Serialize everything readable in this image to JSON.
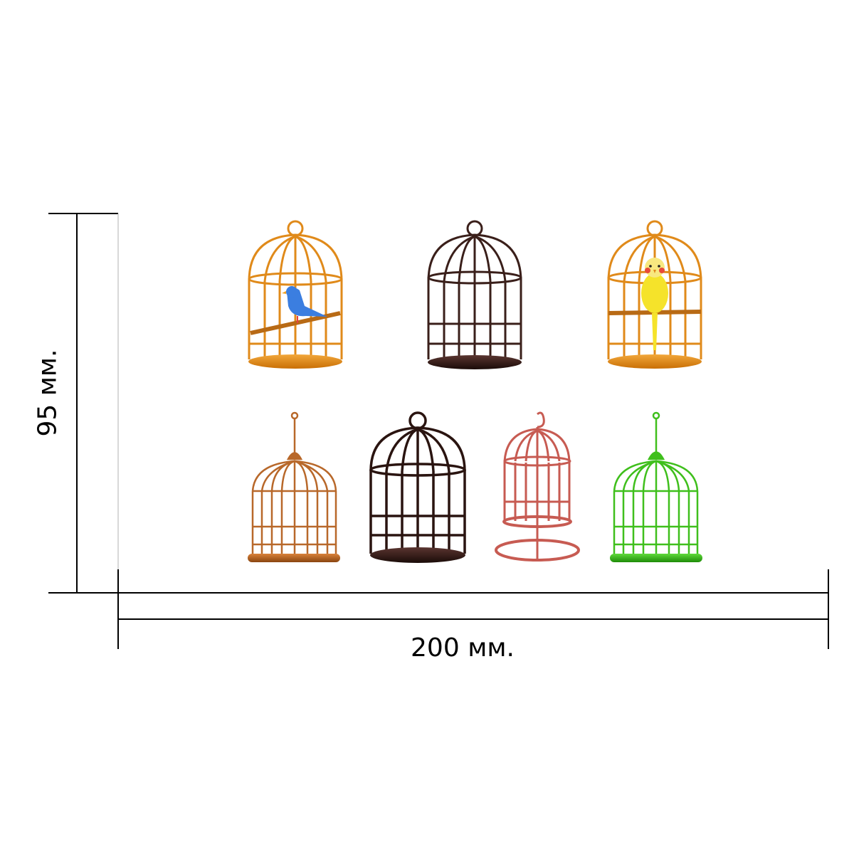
{
  "dimensions": {
    "width_label": "200 мм.",
    "height_label": "95 мм."
  },
  "colors": {
    "line": "#000000",
    "orange": "#e08a1a",
    "orange_dark": "#c06d08",
    "dark": "#3a1f1a",
    "darker": "#2a1410",
    "copper": "#b8682a",
    "red": "#c75b52",
    "green": "#3fbf1c",
    "green_base": "#2aa012",
    "bird_blue": "#3b7ee0",
    "bird_yellow": "#f5e32a"
  },
  "cages": [
    {
      "id": "cage-orange-blue-bird",
      "style": "dome",
      "color": "orange",
      "bird": "blue"
    },
    {
      "id": "cage-dark-empty",
      "style": "dome",
      "color": "dark",
      "bird": ""
    },
    {
      "id": "cage-orange-yellow-bird",
      "style": "dome",
      "color": "orange",
      "bird": "yellow"
    },
    {
      "id": "cage-copper-hanging",
      "style": "hanging",
      "color": "copper",
      "bird": ""
    },
    {
      "id": "cage-black-dome",
      "style": "dome",
      "color": "darker",
      "bird": ""
    },
    {
      "id": "cage-red-stand",
      "style": "stand",
      "color": "red",
      "bird": ""
    },
    {
      "id": "cage-green-hanging",
      "style": "hanging",
      "color": "green",
      "bird": ""
    }
  ]
}
